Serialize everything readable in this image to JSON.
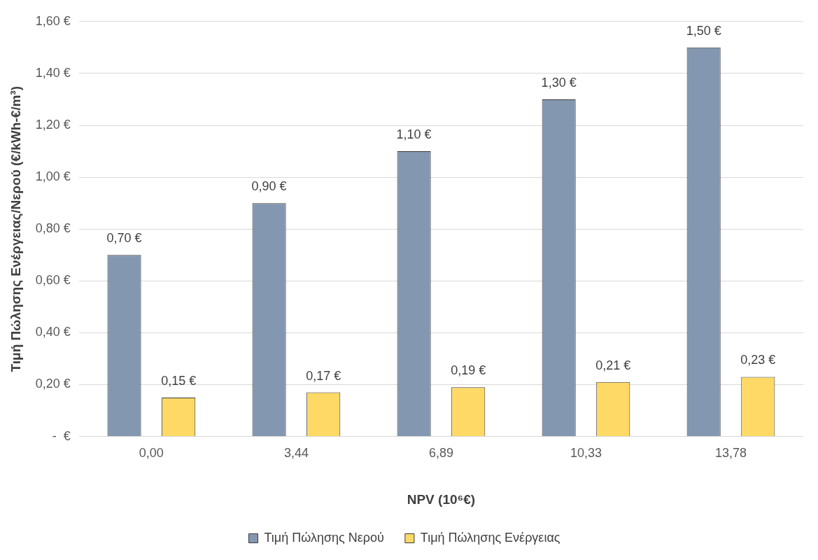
{
  "chart_data": {
    "type": "bar",
    "categories": [
      "0,00",
      "3,44",
      "6,89",
      "10,33",
      "13,78"
    ],
    "series": [
      {
        "name": "Τιμή Πώλησης Νερού",
        "color": "#8497b0",
        "values": [
          0.7,
          0.9,
          1.1,
          1.3,
          1.5
        ],
        "value_labels": [
          "0,70 €",
          "0,90 €",
          "1,10 €",
          "1,30 €",
          "1,50 €"
        ]
      },
      {
        "name": "Τιμή Πώλησης Ενέργειας",
        "color": "#ffd966",
        "values": [
          0.15,
          0.17,
          0.19,
          0.21,
          0.23
        ],
        "value_labels": [
          "0,15 €",
          "0,17 €",
          "0,19 €",
          "0,21 €",
          "0,23 €"
        ]
      }
    ],
    "xlabel": "NPV (10⁶€)",
    "ylabel": "Τιμή Πώλησης Ενέργειας/Νερού (€/kWh-€/m³)",
    "ylim": [
      0,
      1.6
    ],
    "yticks": [
      {
        "value": 0,
        "label": "-  €"
      },
      {
        "value": 0.2,
        "label": "0,20 €"
      },
      {
        "value": 0.4,
        "label": "0,40 €"
      },
      {
        "value": 0.6,
        "label": "0,60 €"
      },
      {
        "value": 0.8,
        "label": "0,80 €"
      },
      {
        "value": 1.0,
        "label": "1,00 €"
      },
      {
        "value": 1.2,
        "label": "1,20 €"
      },
      {
        "value": 1.4,
        "label": "1,40 €"
      },
      {
        "value": 1.6,
        "label": "1,60 €"
      }
    ],
    "grid": "y",
    "legend": "bottom"
  }
}
